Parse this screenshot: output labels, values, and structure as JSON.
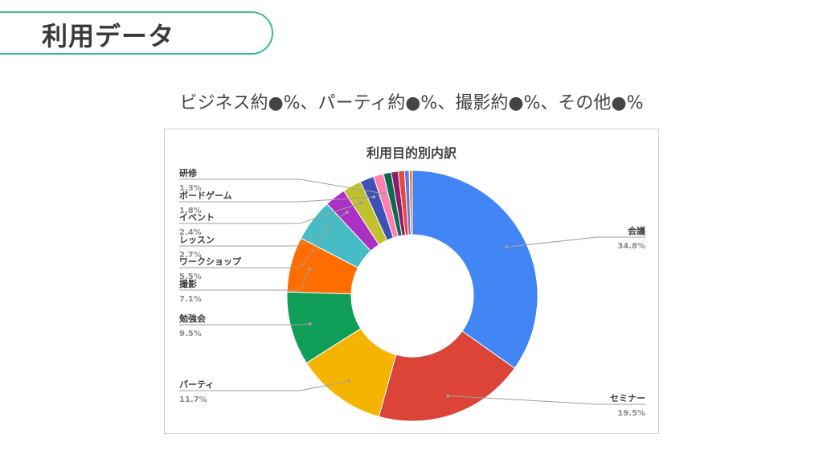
{
  "page": {
    "title": "利用データ",
    "subtitle": "ビジネス約●%、パーティ約●%、撮影約●%、その他●%"
  },
  "colors": {
    "accent": "#3dba94"
  },
  "chart_data": {
    "type": "pie",
    "donut": true,
    "title": "利用目的別内訳",
    "slices": [
      {
        "label": "会議",
        "value": 34.8,
        "pct_label": "34.8%",
        "color": "#4285f4",
        "side": "right"
      },
      {
        "label": "セミナー",
        "value": 19.5,
        "pct_label": "19.5%",
        "color": "#db4437",
        "side": "right"
      },
      {
        "label": "パーティ",
        "value": 11.7,
        "pct_label": "11.7%",
        "color": "#f4b400",
        "side": "left"
      },
      {
        "label": "勉強会",
        "value": 9.5,
        "pct_label": "9.5%",
        "color": "#0f9d58",
        "side": "left"
      },
      {
        "label": "撮影",
        "value": 7.1,
        "pct_label": "7.1%",
        "color": "#ff6d01",
        "side": "left"
      },
      {
        "label": "ワークショップ",
        "value": 5.5,
        "pct_label": "5.5%",
        "color": "#46bdc6",
        "side": "left"
      },
      {
        "label": "レッスン",
        "value": 2.7,
        "pct_label": "2.7%",
        "color": "#ab30c4",
        "side": "left"
      },
      {
        "label": "イベント",
        "value": 2.4,
        "pct_label": "2.4%",
        "color": "#c0c12c",
        "side": "left"
      },
      {
        "label": "ボードゲーム",
        "value": 1.8,
        "pct_label": "1.8%",
        "color": "#3f51b5",
        "side": "left"
      },
      {
        "label": "研修",
        "value": 1.3,
        "pct_label": "1.3%",
        "color": "#ff7fb0",
        "side": "left"
      },
      {
        "label": "",
        "value": 1.0,
        "pct_label": "",
        "color": "#0b6b50",
        "side": "none"
      },
      {
        "label": "",
        "value": 0.9,
        "pct_label": "",
        "color": "#8e1c6b",
        "side": "none"
      },
      {
        "label": "",
        "value": 0.8,
        "pct_label": "",
        "color": "#e8453c",
        "side": "none"
      },
      {
        "label": "",
        "value": 0.6,
        "pct_label": "",
        "color": "#5a7cf0",
        "side": "none"
      },
      {
        "label": "",
        "value": 0.4,
        "pct_label": "",
        "color": "#f58220",
        "side": "none"
      }
    ]
  }
}
